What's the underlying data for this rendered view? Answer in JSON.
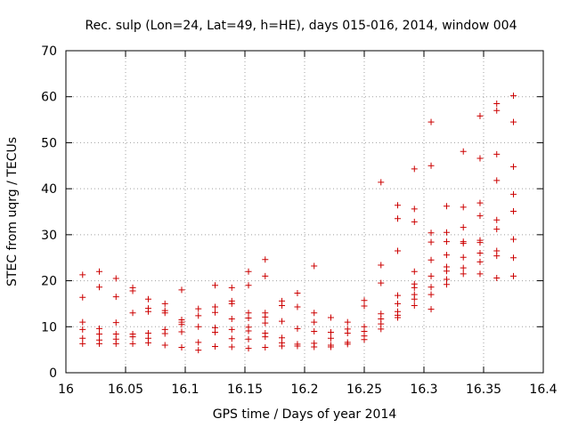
{
  "chart_data": {
    "type": "scatter",
    "title": "Rec. sulp (Lon=24, Lat=49, h=HE), days 015-016, 2014, window 004",
    "xlabel": "GPS time / Days of year 2014",
    "ylabel": "STEC from uqrg / TECUs",
    "xlim": [
      16.0,
      16.4
    ],
    "ylim": [
      0,
      70
    ],
    "xticks": [
      16,
      16.05,
      16.1,
      16.15,
      16.2,
      16.25,
      16.3,
      16.35,
      16.4
    ],
    "xtick_labels": [
      "16",
      "16.05",
      "16.1",
      "16.15",
      "16.2",
      "16.25",
      "16.3",
      "16.35",
      "16.4"
    ],
    "yticks": [
      0,
      10,
      20,
      30,
      40,
      50,
      60,
      70
    ],
    "ytick_labels": [
      "0",
      "10",
      "20",
      "30",
      "40",
      "50",
      "60",
      "70"
    ],
    "grid": true,
    "marker": "+",
    "marker_color": "#cc0000",
    "points": [
      [
        16.014,
        21.3
      ],
      [
        16.014,
        16.4
      ],
      [
        16.014,
        11.0
      ],
      [
        16.014,
        9.4
      ],
      [
        16.014,
        7.5
      ],
      [
        16.014,
        6.3
      ],
      [
        16.028,
        22.0
      ],
      [
        16.028,
        18.6
      ],
      [
        16.028,
        9.6
      ],
      [
        16.028,
        8.4
      ],
      [
        16.028,
        7.1
      ],
      [
        16.028,
        6.3
      ],
      [
        16.042,
        20.5
      ],
      [
        16.042,
        16.5
      ],
      [
        16.042,
        10.9
      ],
      [
        16.042,
        8.4
      ],
      [
        16.042,
        7.3
      ],
      [
        16.042,
        6.3
      ],
      [
        16.056,
        18.5
      ],
      [
        16.056,
        17.8
      ],
      [
        16.056,
        13.0
      ],
      [
        16.056,
        8.4
      ],
      [
        16.056,
        7.8
      ],
      [
        16.056,
        6.3
      ],
      [
        16.069,
        16.0
      ],
      [
        16.069,
        14.0
      ],
      [
        16.069,
        13.3
      ],
      [
        16.069,
        8.6
      ],
      [
        16.069,
        7.5
      ],
      [
        16.069,
        6.5
      ],
      [
        16.083,
        15.0
      ],
      [
        16.083,
        13.5
      ],
      [
        16.083,
        13.0
      ],
      [
        16.083,
        9.4
      ],
      [
        16.083,
        8.5
      ],
      [
        16.083,
        6.0
      ],
      [
        16.097,
        18.0
      ],
      [
        16.097,
        11.5
      ],
      [
        16.097,
        11.0
      ],
      [
        16.097,
        10.5
      ],
      [
        16.097,
        8.9
      ],
      [
        16.097,
        5.5
      ],
      [
        16.111,
        13.9
      ],
      [
        16.111,
        12.4
      ],
      [
        16.111,
        10.0
      ],
      [
        16.111,
        6.6
      ],
      [
        16.111,
        4.9
      ],
      [
        16.125,
        19.0
      ],
      [
        16.125,
        14.3
      ],
      [
        16.125,
        13.1
      ],
      [
        16.125,
        9.8
      ],
      [
        16.125,
        8.8
      ],
      [
        16.125,
        5.7
      ],
      [
        16.139,
        18.5
      ],
      [
        16.139,
        15.6
      ],
      [
        16.139,
        15.0
      ],
      [
        16.139,
        11.7
      ],
      [
        16.139,
        9.4
      ],
      [
        16.139,
        7.4
      ],
      [
        16.139,
        5.6
      ],
      [
        16.153,
        22.0
      ],
      [
        16.153,
        19.0
      ],
      [
        16.153,
        13.0
      ],
      [
        16.153,
        11.9
      ],
      [
        16.153,
        9.9
      ],
      [
        16.153,
        9.1
      ],
      [
        16.153,
        7.3
      ],
      [
        16.153,
        5.3
      ],
      [
        16.167,
        24.6
      ],
      [
        16.167,
        21.0
      ],
      [
        16.167,
        13.0
      ],
      [
        16.167,
        12.1
      ],
      [
        16.167,
        10.8
      ],
      [
        16.167,
        8.6
      ],
      [
        16.167,
        7.8
      ],
      [
        16.167,
        5.5
      ],
      [
        16.181,
        15.6
      ],
      [
        16.181,
        14.6
      ],
      [
        16.181,
        11.2
      ],
      [
        16.181,
        7.6
      ],
      [
        16.181,
        6.5
      ],
      [
        16.181,
        5.8
      ],
      [
        16.194,
        17.3
      ],
      [
        16.194,
        14.3
      ],
      [
        16.194,
        9.6
      ],
      [
        16.194,
        6.2
      ],
      [
        16.194,
        5.8
      ],
      [
        16.208,
        23.2
      ],
      [
        16.208,
        13.0
      ],
      [
        16.208,
        11.0
      ],
      [
        16.208,
        9.0
      ],
      [
        16.208,
        6.4
      ],
      [
        16.208,
        5.6
      ],
      [
        16.222,
        12.0
      ],
      [
        16.222,
        8.8
      ],
      [
        16.222,
        7.5
      ],
      [
        16.222,
        6.0
      ],
      [
        16.222,
        5.6
      ],
      [
        16.236,
        11.0
      ],
      [
        16.236,
        9.5
      ],
      [
        16.236,
        8.6
      ],
      [
        16.236,
        6.6
      ],
      [
        16.236,
        6.2
      ],
      [
        16.25,
        15.7
      ],
      [
        16.25,
        14.5
      ],
      [
        16.25,
        10.0
      ],
      [
        16.25,
        9.0
      ],
      [
        16.25,
        8.0
      ],
      [
        16.25,
        7.2
      ],
      [
        16.264,
        41.4
      ],
      [
        16.264,
        23.4
      ],
      [
        16.264,
        19.5
      ],
      [
        16.264,
        12.8
      ],
      [
        16.264,
        11.7
      ],
      [
        16.264,
        10.6
      ],
      [
        16.264,
        9.5
      ],
      [
        16.278,
        36.4
      ],
      [
        16.278,
        33.5
      ],
      [
        16.278,
        26.5
      ],
      [
        16.278,
        16.8
      ],
      [
        16.278,
        15.0
      ],
      [
        16.278,
        13.3
      ],
      [
        16.278,
        12.5
      ],
      [
        16.278,
        12.0
      ],
      [
        16.292,
        44.3
      ],
      [
        16.292,
        35.6
      ],
      [
        16.292,
        32.8
      ],
      [
        16.292,
        22.0
      ],
      [
        16.292,
        19.3
      ],
      [
        16.292,
        18.5
      ],
      [
        16.292,
        17.0
      ],
      [
        16.292,
        16.0
      ],
      [
        16.292,
        14.6
      ],
      [
        16.306,
        54.5
      ],
      [
        16.306,
        45.0
      ],
      [
        16.306,
        30.4
      ],
      [
        16.306,
        28.4
      ],
      [
        16.306,
        24.5
      ],
      [
        16.306,
        21.0
      ],
      [
        16.306,
        18.6
      ],
      [
        16.306,
        17.0
      ],
      [
        16.306,
        13.8
      ],
      [
        16.319,
        36.2
      ],
      [
        16.319,
        30.5
      ],
      [
        16.319,
        28.5
      ],
      [
        16.319,
        25.6
      ],
      [
        16.319,
        23.0
      ],
      [
        16.319,
        22.1
      ],
      [
        16.319,
        20.3
      ],
      [
        16.319,
        19.2
      ],
      [
        16.333,
        48.1
      ],
      [
        16.333,
        36.0
      ],
      [
        16.333,
        31.6
      ],
      [
        16.333,
        28.5
      ],
      [
        16.333,
        28.1
      ],
      [
        16.333,
        25.1
      ],
      [
        16.333,
        22.8
      ],
      [
        16.333,
        21.5
      ],
      [
        16.347,
        55.8
      ],
      [
        16.347,
        46.6
      ],
      [
        16.347,
        36.9
      ],
      [
        16.347,
        34.1
      ],
      [
        16.347,
        28.8
      ],
      [
        16.347,
        28.3
      ],
      [
        16.347,
        26.0
      ],
      [
        16.347,
        24.1
      ],
      [
        16.347,
        21.5
      ],
      [
        16.361,
        58.5
      ],
      [
        16.361,
        57.0
      ],
      [
        16.361,
        47.5
      ],
      [
        16.361,
        41.8
      ],
      [
        16.361,
        33.2
      ],
      [
        16.361,
        31.2
      ],
      [
        16.361,
        26.5
      ],
      [
        16.361,
        25.4
      ],
      [
        16.361,
        20.6
      ],
      [
        16.375,
        60.2
      ],
      [
        16.375,
        54.5
      ],
      [
        16.375,
        44.8
      ],
      [
        16.375,
        38.8
      ],
      [
        16.375,
        35.1
      ],
      [
        16.375,
        29.0
      ],
      [
        16.375,
        25.0
      ],
      [
        16.375,
        21.0
      ]
    ]
  }
}
